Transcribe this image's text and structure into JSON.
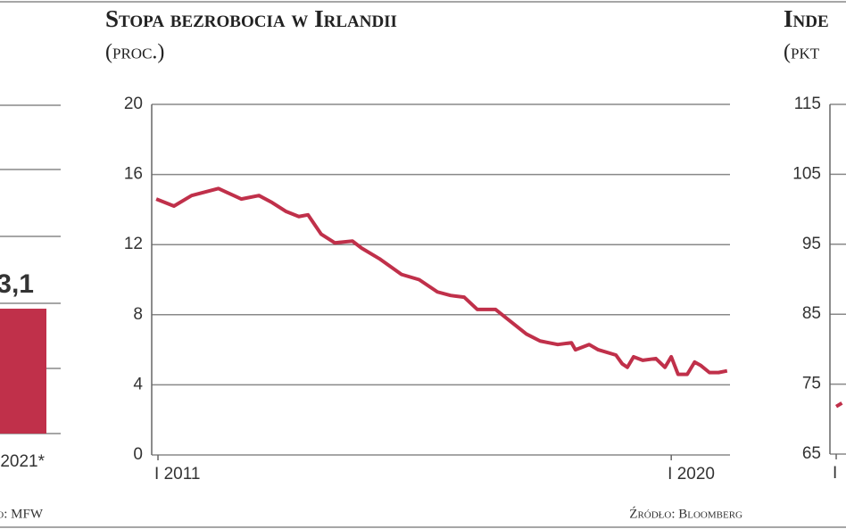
{
  "chart_data": [
    {
      "type": "bar",
      "categories": [
        "2021*"
      ],
      "values": [
        3.1
      ],
      "value_labels": [
        "3,1"
      ],
      "color": "#c0304a",
      "ylim": [
        0,
        8.15
      ],
      "source": "Źródło: MFW"
    },
    {
      "type": "line",
      "title": "Stopa bezrobocia w Irlandii",
      "subtitle": "(proc.)",
      "x": [
        2010.97,
        2011.28,
        2011.59,
        2012.06,
        2012.46,
        2012.77,
        2013.0,
        2013.24,
        2013.47,
        2013.63,
        2013.86,
        2014.1,
        2014.41,
        2014.57,
        2014.88,
        2015.27,
        2015.58,
        2015.9,
        2016.13,
        2016.37,
        2016.6,
        2016.92,
        2017.15,
        2017.46,
        2017.7,
        2018.01,
        2018.25,
        2018.32,
        2018.56,
        2018.72,
        2019.03,
        2019.14,
        2019.23,
        2019.34,
        2019.5,
        2019.73,
        2019.89,
        2020.0,
        2020.12,
        2020.28,
        2020.41,
        2020.52,
        2020.67,
        2020.83,
        2020.98
      ],
      "values": [
        14.6,
        14.2,
        14.8,
        15.2,
        14.6,
        14.8,
        14.4,
        13.9,
        13.6,
        13.7,
        12.6,
        12.1,
        12.2,
        11.8,
        11.2,
        10.3,
        10.0,
        9.3,
        9.1,
        9.0,
        8.3,
        8.3,
        7.7,
        6.9,
        6.5,
        6.3,
        6.4,
        6.0,
        6.3,
        6.0,
        5.7,
        5.2,
        5.0,
        5.6,
        5.4,
        5.5,
        5.0,
        5.6,
        4.6,
        4.6,
        5.3,
        5.1,
        4.7,
        4.7,
        4.8
      ],
      "color": "#c0304a",
      "xlim": [
        2010.89,
        2021.03
      ],
      "ylim": [
        0,
        20
      ],
      "yticks": [
        0,
        4,
        8,
        12,
        16,
        20
      ],
      "xticks": [
        {
          "value": 2011,
          "label": "I 2011"
        },
        {
          "value": 2020,
          "label": "I 2020"
        }
      ],
      "grid": true,
      "source": "Źródło: Bloomberg"
    },
    {
      "type": "line",
      "title": "Inde",
      "subtitle": "(pkt",
      "x": [
        2011.0,
        2011.1
      ],
      "values": [
        71.8,
        72.3
      ],
      "color": "#c0304a",
      "xlim": [
        2010.89,
        2021.03
      ],
      "ylim": [
        65,
        115
      ],
      "yticks": [
        65,
        75,
        85,
        95,
        105,
        115
      ],
      "xticks": [
        {
          "value": 2011,
          "label": "I"
        }
      ],
      "grid": true
    }
  ]
}
